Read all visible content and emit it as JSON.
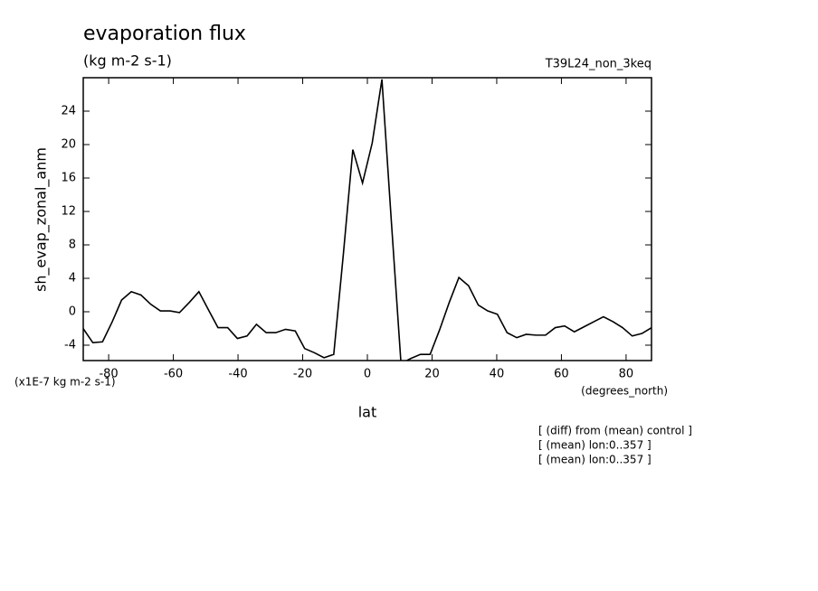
{
  "chart_data": {
    "type": "line",
    "title": "evaporation flux",
    "subtitle": "(kg m-2 s-1)",
    "run_label": "T39L24_non_3keq",
    "y_label": "sh_evap_zonal_anm",
    "x_label": "lat",
    "y_units": "(x1E-7 kg m-2 s-1)",
    "x_units": "(degrees_north)",
    "notes": [
      "[ (diff) from (mean) control ]",
      "[ (mean) lon:0..357 ]",
      "[ (mean) lon:0..357 ]"
    ],
    "x": [
      -87.9,
      -84.9,
      -81.9,
      -78.9,
      -76.0,
      -73.0,
      -70.0,
      -67.0,
      -64.0,
      -61.0,
      -58.1,
      -55.1,
      -52.1,
      -49.1,
      -46.2,
      -43.2,
      -40.2,
      -37.2,
      -34.3,
      -31.3,
      -28.3,
      -25.3,
      -22.3,
      -19.4,
      -16.4,
      -13.4,
      -10.4,
      -7.4,
      -4.5,
      -1.5,
      1.5,
      4.5,
      7.4,
      10.4,
      13.4,
      16.4,
      19.4,
      22.3,
      25.3,
      28.3,
      31.3,
      34.3,
      37.2,
      40.2,
      43.2,
      46.2,
      49.1,
      52.1,
      55.1,
      58.1,
      61.0,
      64.0,
      67.0,
      70.0,
      73.0,
      76.0,
      78.9,
      81.9,
      84.9,
      87.9
    ],
    "series": [
      {
        "color": "#000000",
        "values": [
          -2.0,
          -3.7,
          -3.6,
          -1.2,
          1.4,
          2.4,
          2.0,
          0.9,
          0.1,
          0.1,
          -0.1,
          1.1,
          2.4,
          0.2,
          -1.9,
          -1.9,
          -3.2,
          -2.9,
          -1.5,
          -2.5,
          -2.5,
          -2.1,
          -2.3,
          -4.4,
          -4.9,
          -5.5,
          -5.1,
          7.0,
          19.4,
          15.4,
          20.2,
          27.8,
          10.9,
          -6.2,
          -5.6,
          -5.1,
          -5.1,
          -2.2,
          1.1,
          4.1,
          3.1,
          0.8,
          0.1,
          -0.3,
          -2.5,
          -3.1,
          -2.7,
          -2.8,
          -2.8,
          -1.9,
          -1.7,
          -2.4,
          -1.8,
          -1.2,
          -0.6,
          -1.2,
          -1.9,
          -2.9,
          -2.6,
          -1.9
        ]
      }
    ],
    "xlim": [
      -87.86,
      87.86
    ],
    "ylim": [
      -5.84,
      28
    ],
    "xticks": [
      -80,
      -60,
      -40,
      -20,
      0,
      20,
      40,
      60,
      80
    ],
    "yticks": [
      -4,
      0,
      4,
      8,
      12,
      16,
      20,
      24
    ]
  }
}
